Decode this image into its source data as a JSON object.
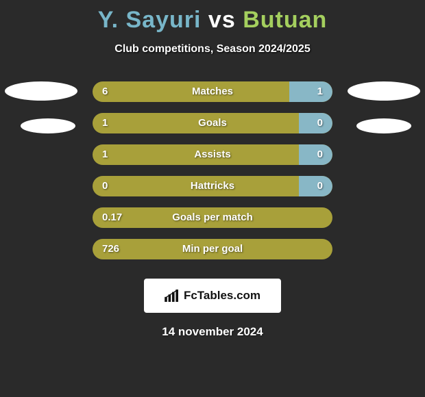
{
  "background_color": "#2a2a2a",
  "title": {
    "player1": "Y. Sayuri",
    "vs": "vs",
    "player2": "Butuan",
    "player1_color": "#78b6c9",
    "player2_color": "#a4cf5e",
    "font_size": 34
  },
  "subtitle": "Club competitions, Season 2024/2025",
  "ovals_color": "#ffffff",
  "bars": {
    "left_color": "#a8a03a",
    "right_color": "#88b7c6",
    "text_color": "#ffffff",
    "rows": [
      {
        "label": "Matches",
        "left": "6",
        "right": "1",
        "right_fill_pct": 18
      },
      {
        "label": "Goals",
        "left": "1",
        "right": "0",
        "right_fill_pct": 14
      },
      {
        "label": "Assists",
        "left": "1",
        "right": "0",
        "right_fill_pct": 14
      },
      {
        "label": "Hattricks",
        "left": "0",
        "right": "0",
        "right_fill_pct": 14
      },
      {
        "label": "Goals per match",
        "left": "0.17",
        "right": "",
        "right_fill_pct": 0
      },
      {
        "label": "Min per goal",
        "left": "726",
        "right": "",
        "right_fill_pct": 0
      }
    ]
  },
  "logo_text": "FcTables.com",
  "date": "14 november 2024"
}
